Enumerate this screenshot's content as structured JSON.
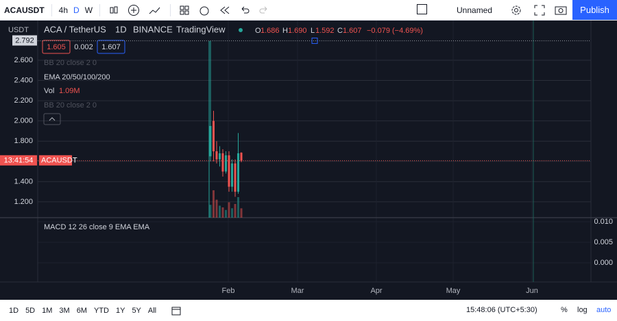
{
  "toolbar": {
    "symbol": "ACAUSDT",
    "intervals": [
      "4h",
      "D",
      "W"
    ],
    "layout_name": "Unnamed",
    "publish": "Publish"
  },
  "legend": {
    "symbol": "ACA / TetherUS",
    "interval": "1D",
    "exchange": "BINANCE",
    "source": "TradingView",
    "open_label": "O",
    "open": "1.686",
    "high_label": "H",
    "high": "1.690",
    "low_label": "L",
    "low": "1.592",
    "close_label": "C",
    "close": "1.607",
    "change": "−0.079 (−4.69%)"
  },
  "indicators": {
    "bid": "1.605",
    "spread": "0.002",
    "ask": "1.607",
    "bb1": "BB 20 close 2 0",
    "ema": "EMA 20/50/100/200",
    "vol": "Vol",
    "vol_value": "1.09M",
    "bb2": "BB 20 close 2 0",
    "macd": "MACD 12 26 close 9 EMA EMA"
  },
  "price_axis": {
    "currency": "USDT",
    "high_label": "2.792",
    "countdown": "13:41:54",
    "symbol_tag": "ACAUSDT"
  },
  "chart_data": {
    "type": "candlestick",
    "ylim": [
      1.044,
      2.992
    ],
    "yticks": [
      {
        "value": 1.2,
        "label": "1.200"
      },
      {
        "value": 1.4,
        "label": "1.400"
      },
      {
        "value": 1.6,
        "label": "1.600"
      },
      {
        "value": 1.8,
        "label": "1.800"
      },
      {
        "value": 2.0,
        "label": "2.000"
      },
      {
        "value": 2.2,
        "label": "2.200"
      },
      {
        "value": 2.4,
        "label": "2.400"
      },
      {
        "value": 2.6,
        "label": "2.600"
      }
    ],
    "open": [
      1.65,
      2.0,
      1.7,
      1.62,
      1.68,
      1.5,
      1.66,
      1.35,
      1.58,
      1.3,
      1.686
    ],
    "high": [
      2.792,
      2.1,
      1.8,
      1.75,
      1.72,
      1.7,
      1.7,
      1.62,
      1.62,
      1.88,
      1.69
    ],
    "low": [
      1.6,
      1.6,
      1.58,
      1.55,
      1.45,
      1.48,
      1.3,
      1.3,
      1.25,
      1.28,
      1.592
    ],
    "close": [
      1.95,
      1.7,
      1.62,
      1.68,
      1.5,
      1.66,
      1.35,
      1.58,
      1.3,
      1.68,
      1.607
    ],
    "volume": [
      1.5,
      3.2,
      2.1,
      1.4,
      1.2,
      0.9,
      1.8,
      1.1,
      1.6,
      2.4,
      1.09
    ],
    "up_color": "#26a69a",
    "down_color": "#ef5350",
    "macd_ylim": [
      -0.00467,
      0.011
    ],
    "macd_yticks": [
      {
        "value": 0.01,
        "label": "0.010"
      },
      {
        "value": 0.005,
        "label": "0.005"
      },
      {
        "value": 0,
        "label": "0.000"
      }
    ],
    "months": [
      "Feb",
      "Mar",
      "Apr",
      "May",
      "Jun"
    ]
  },
  "bottom_bar": {
    "ranges": [
      "1D",
      "5D",
      "1M",
      "3M",
      "6M",
      "YTD",
      "1Y",
      "5Y",
      "All"
    ],
    "clock": "15:48:06 (UTC+5:30)",
    "percent": "%",
    "log": "log",
    "auto": "auto"
  }
}
